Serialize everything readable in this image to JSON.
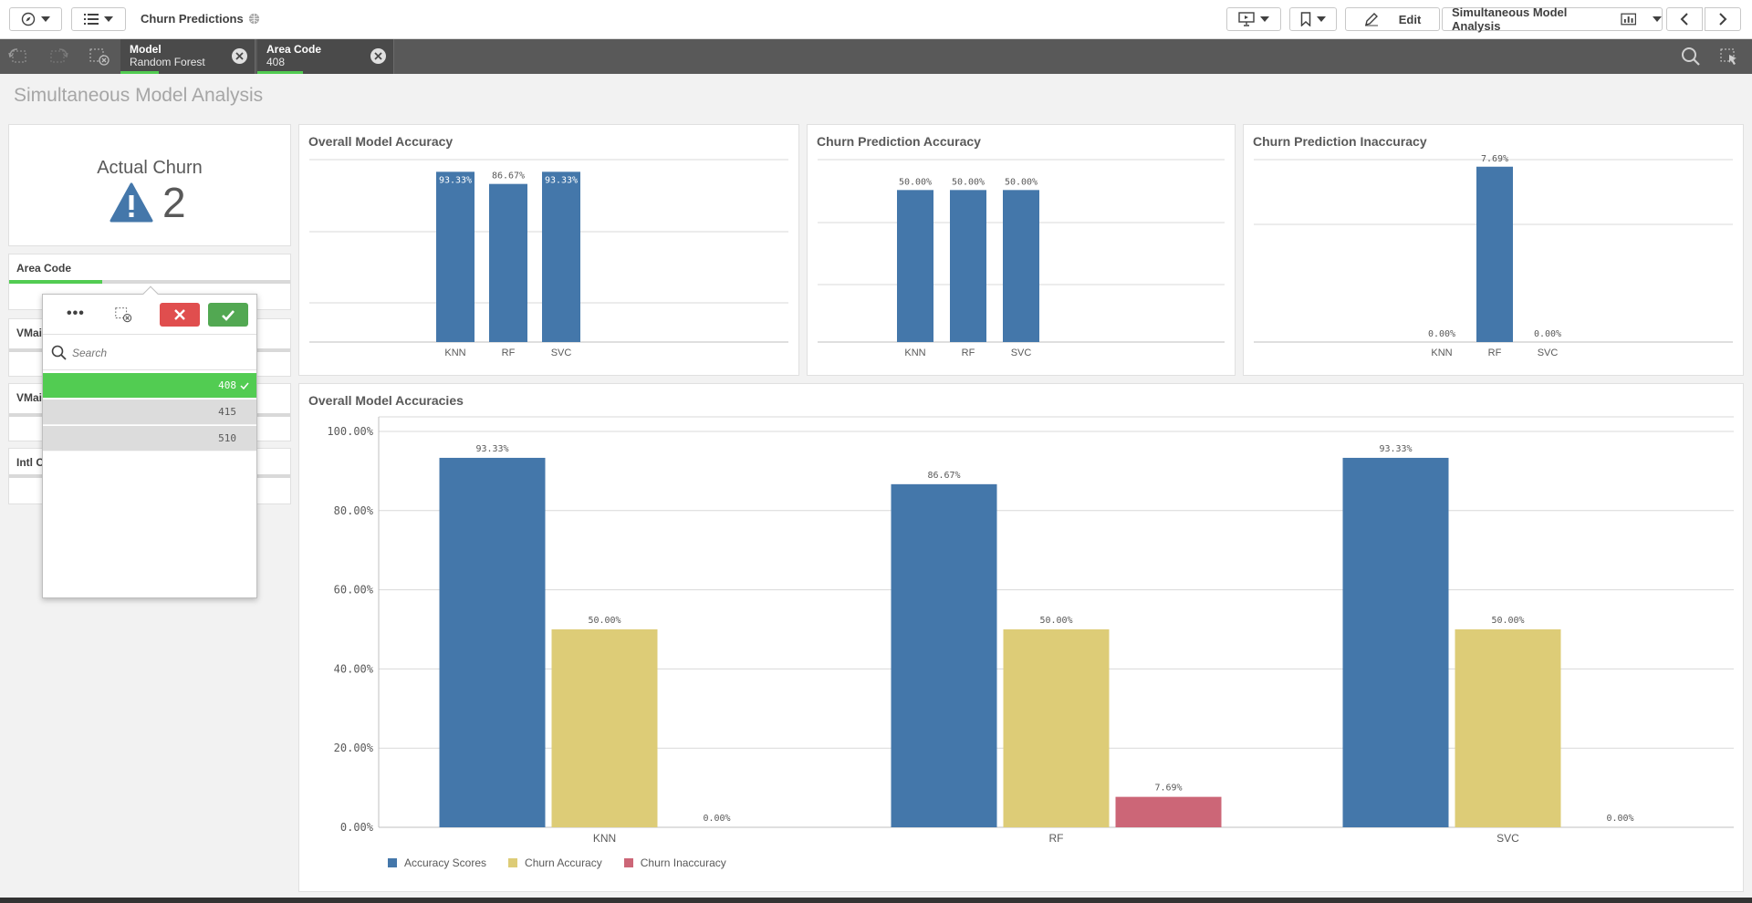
{
  "toolbar": {
    "app_title": "Churn Predictions",
    "edit_label": "Edit",
    "sheet_name": "Simultaneous Model Analysis"
  },
  "selections": [
    {
      "field": "Model",
      "value": "Random Forest"
    },
    {
      "field": "Area Code",
      "value": "408"
    }
  ],
  "sheet": {
    "title": "Simultaneous Model Analysis"
  },
  "kpi": {
    "label": "Actual Churn",
    "value": "2"
  },
  "filters": [
    {
      "title": "Area Code"
    },
    {
      "title": "VMail"
    },
    {
      "title": "VMail"
    },
    {
      "title": "Intl C"
    }
  ],
  "listbox": {
    "search_placeholder": "Search",
    "items": [
      {
        "value": "408",
        "state": "selected"
      },
      {
        "value": "415",
        "state": "alternative"
      },
      {
        "value": "510",
        "state": "alternative"
      }
    ]
  },
  "colors": {
    "accuracy": "#4477aa",
    "churn_accuracy": "#ddcc77",
    "churn_inaccuracy": "#cc6677",
    "selected_green": "#52cc52"
  },
  "chart_data": [
    {
      "id": "overall-accuracy",
      "type": "bar",
      "title": "Overall Model Accuracy",
      "categories": [
        "KNN",
        "RF",
        "SVC"
      ],
      "values": [
        93.33,
        86.67,
        93.33
      ],
      "labels": [
        "93.33%",
        "86.67%",
        "93.33%"
      ],
      "ylim": [
        0,
        100
      ]
    },
    {
      "id": "churn-accuracy",
      "type": "bar",
      "title": "Churn Prediction Accuracy",
      "categories": [
        "KNN",
        "RF",
        "SVC"
      ],
      "values": [
        50,
        50,
        50
      ],
      "labels": [
        "50.00%",
        "50.00%",
        "50.00%"
      ],
      "ylim": [
        0,
        60
      ]
    },
    {
      "id": "churn-inaccuracy",
      "type": "bar",
      "title": "Churn Prediction Inaccuracy",
      "categories": [
        "KNN",
        "RF",
        "SVC"
      ],
      "values": [
        0,
        7.69,
        0
      ],
      "labels": [
        "0.00%",
        "7.69%",
        "0.00%"
      ],
      "ylim": [
        0,
        8
      ]
    },
    {
      "id": "overall-accuracies",
      "type": "bar",
      "title": "Overall Model Accuracies",
      "categories": [
        "KNN",
        "RF",
        "SVC"
      ],
      "series": [
        {
          "name": "Accuracy Scores",
          "values": [
            93.33,
            86.67,
            93.33
          ],
          "labels": [
            "93.33%",
            "86.67%",
            "93.33%"
          ]
        },
        {
          "name": "Churn Accuracy",
          "values": [
            50,
            50,
            50
          ],
          "labels": [
            "50.00%",
            "50.00%",
            "50.00%"
          ]
        },
        {
          "name": "Churn Inaccuracy",
          "values": [
            0,
            7.69,
            0
          ],
          "labels": [
            "0.00%",
            "7.69%",
            "0.00%"
          ]
        }
      ],
      "yticks": [
        "0.00%",
        "20.00%",
        "40.00%",
        "60.00%",
        "80.00%",
        "100.00%"
      ],
      "ylim": [
        0,
        100
      ],
      "grid": true,
      "legend": "bottom-left"
    }
  ]
}
